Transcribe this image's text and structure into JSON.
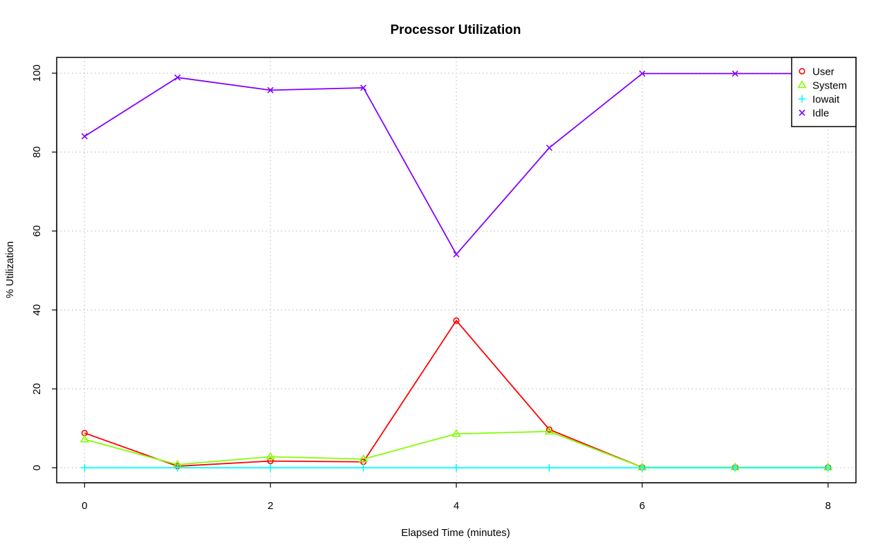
{
  "chart_data": {
    "type": "line",
    "title": "Processor Utilization",
    "xlabel": "Elapsed Time (minutes)",
    "ylabel": "% Utilization",
    "xlim": [
      -0.3,
      8.3
    ],
    "ylim": [
      -3.8,
      104.0
    ],
    "x_ticks": [
      0,
      2,
      4,
      6,
      8
    ],
    "y_ticks": [
      0,
      20,
      40,
      60,
      80,
      100
    ],
    "grid": true,
    "legend_position": "top-right",
    "x": [
      0,
      1,
      2,
      3,
      4,
      5,
      6,
      7,
      8
    ],
    "series": [
      {
        "name": "User",
        "marker": "circle",
        "color": "#FF0000",
        "values": [
          8.8,
          0.4,
          1.7,
          1.5,
          37.3,
          9.7,
          0.1,
          0.1,
          0.1
        ]
      },
      {
        "name": "System",
        "marker": "triangle",
        "color": "#80FF00",
        "values": [
          7.2,
          0.8,
          2.8,
          2.2,
          8.6,
          9.2,
          0.1,
          0.1,
          0.1
        ]
      },
      {
        "name": "Iowait",
        "marker": "plus",
        "color": "#00FFFF",
        "values": [
          0,
          0,
          0,
          0,
          0,
          0,
          0,
          0,
          0
        ]
      },
      {
        "name": "Idle",
        "marker": "cross",
        "color": "#8000FF",
        "values": [
          84.0,
          98.9,
          95.7,
          96.3,
          54.1,
          81.1,
          99.9,
          99.9,
          99.9
        ]
      }
    ]
  }
}
